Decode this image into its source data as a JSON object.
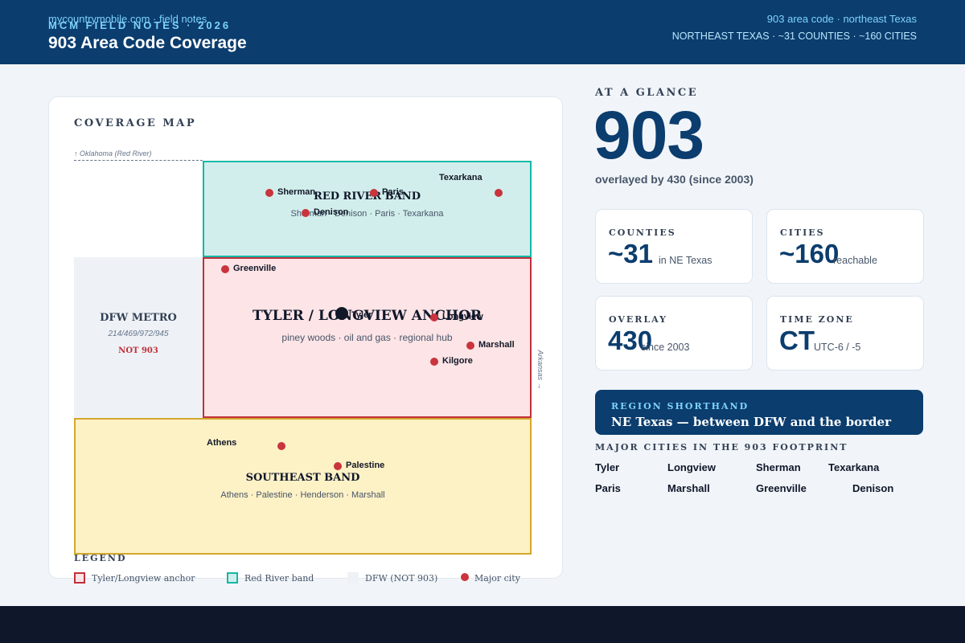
{
  "header": {
    "kicker": "MCM FIELD NOTES · 2026",
    "title": "903 Area Code Coverage",
    "summary": "NORTHEAST TEXAS · ~31 COUNTIES · ~160 CITIES"
  },
  "map": {
    "title": "COVERAGE MAP",
    "oklahoma_label": "↑ Oklahoma (Red River)",
    "arkansas_label": "Arkansas →",
    "zones": {
      "red_river": {
        "title": "RED RIVER BAND",
        "subtitle": "Sherman · Denison · Paris · Texarkana",
        "color": "#14b8a6"
      },
      "dfw": {
        "title": "DFW METRO",
        "codes": "214/469/972/945",
        "note": "NOT 903"
      },
      "tyler": {
        "title": "TYLER / LONGVIEW ANCHOR",
        "subtitle": "piney woods · oil and gas · regional hub",
        "color": "#c0303a"
      },
      "southeast": {
        "title": "SOUTHEAST BAND",
        "subtitle": "Athens · Palestine · Henderson · Marshall",
        "color": "#d4a72c"
      }
    },
    "cities": {
      "sherman": "Sherman",
      "paris": "Paris",
      "texarkana": "Texarkana",
      "denison": "Denison",
      "greenville": "Greenville",
      "tyler": "Tyler",
      "longview": "Longview",
      "marshall": "Marshall",
      "kilgore": "Kilgore",
      "athens": "Athens",
      "palestine": "Palestine"
    },
    "legend": {
      "title": "LEGEND",
      "items": [
        "Tyler/Longview anchor",
        "Red River band",
        "DFW (NOT 903)",
        "Major city"
      ]
    }
  },
  "glance": {
    "label": "AT A GLANCE",
    "code": "903",
    "overlay_note": "overlayed by 430 (since 2003)"
  },
  "stats": [
    {
      "label": "COUNTIES",
      "value": "~31",
      "sub": "in NE Texas"
    },
    {
      "label": "CITIES",
      "value": "~160",
      "sub": "reachable"
    },
    {
      "label": "OVERLAY",
      "value": "430",
      "sub": "since 2003"
    },
    {
      "label": "TIME ZONE",
      "value": "CT",
      "sub": "UTC-6 / -5"
    }
  ],
  "region": {
    "label": "REGION SHORTHAND",
    "value": "NE Texas — between DFW and the border"
  },
  "major": {
    "label": "MAJOR CITIES IN THE 903 FOOTPRINT",
    "cities": [
      "Tyler",
      "Longview",
      "Sherman",
      "Texarkana",
      "Paris",
      "Marshall",
      "Greenville",
      "Denison"
    ]
  },
  "footer": {
    "left": "mycountrymobile.com · field notes",
    "right": "903 area code · northeast Texas"
  },
  "colors": {
    "navy": "#0b3d6e",
    "city_dot": "#c9343d",
    "anchor_dot": "#111827"
  }
}
